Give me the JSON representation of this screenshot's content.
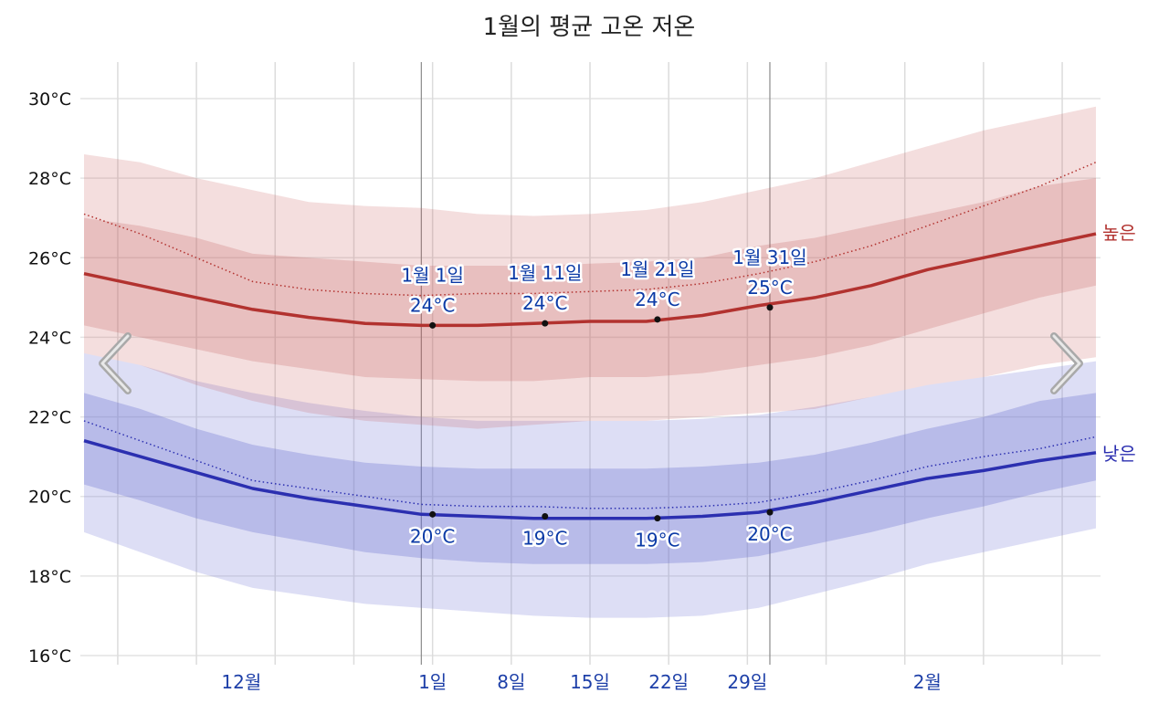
{
  "chart_data": {
    "type": "line",
    "title": "1월의 평균 고온 저온",
    "y_ticks": [
      "30°C",
      "28°C",
      "26°C",
      "24°C",
      "22°C",
      "20°C",
      "18°C",
      "16°C"
    ],
    "ylim": [
      16,
      30
    ],
    "x_tick_labels": [
      "12월",
      "1일",
      "8일",
      "15일",
      "22일",
      "29일",
      "2월"
    ],
    "grid": true,
    "series": [
      {
        "name": "높은",
        "color": "#b2322f",
        "x_days": [
          -30,
          -25,
          -20,
          -15,
          -10,
          -5,
          0,
          5,
          10,
          15,
          20,
          25,
          30,
          35,
          40,
          45,
          50,
          55,
          60
        ],
        "mean": [
          25.6,
          25.3,
          25.0,
          24.7,
          24.5,
          24.35,
          24.3,
          24.3,
          24.35,
          24.4,
          24.4,
          24.55,
          24.8,
          25.0,
          25.3,
          25.7,
          26.0,
          26.3,
          26.6
        ],
        "p25": [
          24.3,
          24.0,
          23.7,
          23.4,
          23.2,
          23.0,
          22.95,
          22.9,
          22.9,
          23.0,
          23.0,
          23.1,
          23.3,
          23.5,
          23.8,
          24.2,
          24.6,
          25.0,
          25.3
        ],
        "p75": [
          27.0,
          26.8,
          26.5,
          26.1,
          26.0,
          25.9,
          25.8,
          25.8,
          25.8,
          25.85,
          25.9,
          26.0,
          26.3,
          26.5,
          26.8,
          27.1,
          27.4,
          27.8,
          28.0
        ],
        "p10": [
          23.6,
          23.3,
          22.8,
          22.4,
          22.1,
          21.9,
          21.8,
          21.7,
          21.8,
          21.9,
          21.9,
          22.0,
          22.1,
          22.2,
          22.5,
          22.8,
          23.0,
          23.3,
          23.5
        ],
        "p90": [
          28.6,
          28.4,
          28.0,
          27.7,
          27.4,
          27.3,
          27.25,
          27.1,
          27.05,
          27.1,
          27.2,
          27.4,
          27.7,
          28.0,
          28.4,
          28.8,
          29.2,
          29.5,
          29.8
        ],
        "record_line": [
          27.1,
          26.6,
          26.0,
          25.4,
          25.2,
          25.1,
          25.05,
          25.1,
          25.1,
          25.15,
          25.2,
          25.35,
          25.6,
          25.9,
          26.3,
          26.8,
          27.3,
          27.8,
          28.4
        ]
      },
      {
        "name": "낮은",
        "color": "#2b2fb0",
        "x_days": [
          -30,
          -25,
          -20,
          -15,
          -10,
          -5,
          0,
          5,
          10,
          15,
          20,
          25,
          30,
          35,
          40,
          45,
          50,
          55,
          60
        ],
        "mean": [
          21.4,
          21.0,
          20.6,
          20.2,
          19.95,
          19.75,
          19.55,
          19.5,
          19.45,
          19.45,
          19.45,
          19.5,
          19.6,
          19.85,
          20.15,
          20.45,
          20.65,
          20.9,
          21.1
        ],
        "p25": [
          20.3,
          19.9,
          19.45,
          19.1,
          18.85,
          18.6,
          18.45,
          18.35,
          18.3,
          18.3,
          18.3,
          18.35,
          18.5,
          18.8,
          19.1,
          19.45,
          19.75,
          20.1,
          20.4
        ],
        "p75": [
          22.6,
          22.2,
          21.7,
          21.3,
          21.05,
          20.85,
          20.75,
          20.7,
          20.7,
          20.7,
          20.7,
          20.75,
          20.85,
          21.05,
          21.35,
          21.7,
          22.0,
          22.4,
          22.6
        ],
        "p10": [
          19.1,
          18.6,
          18.1,
          17.7,
          17.5,
          17.3,
          17.2,
          17.1,
          17.0,
          16.95,
          16.95,
          17.0,
          17.2,
          17.55,
          17.9,
          18.3,
          18.6,
          18.9,
          19.2
        ],
        "p90": [
          23.6,
          23.3,
          22.9,
          22.6,
          22.35,
          22.15,
          22.0,
          21.9,
          21.9,
          21.9,
          21.9,
          21.95,
          22.05,
          22.25,
          22.5,
          22.8,
          23.0,
          23.2,
          23.4
        ],
        "record_line": [
          21.9,
          21.4,
          20.9,
          20.4,
          20.2,
          20.0,
          19.8,
          19.75,
          19.75,
          19.7,
          19.7,
          19.75,
          19.85,
          20.1,
          20.4,
          20.75,
          21.0,
          21.2,
          21.5
        ]
      }
    ],
    "annotations": {
      "high": [
        {
          "date": "1월 1일",
          "value": "24°C",
          "day": 1,
          "temp": 24.3
        },
        {
          "date": "1월 11일",
          "value": "24°C",
          "day": 11,
          "temp": 24.35
        },
        {
          "date": "1월 21일",
          "value": "24°C",
          "day": 21,
          "temp": 24.45
        },
        {
          "date": "1월 31일",
          "value": "25°C",
          "day": 31,
          "temp": 24.75
        }
      ],
      "low": [
        {
          "value": "20°C",
          "day": 1,
          "temp": 19.55
        },
        {
          "value": "19°C",
          "day": 11,
          "temp": 19.5
        },
        {
          "value": "19°C",
          "day": 21,
          "temp": 19.45
        },
        {
          "value": "20°C",
          "day": 31,
          "temp": 19.6
        }
      ]
    },
    "legend_right": {
      "high": "높은",
      "low": "낮은"
    }
  },
  "nav": {
    "prev_icon": "chevron-left-icon",
    "next_icon": "chevron-right-icon"
  }
}
